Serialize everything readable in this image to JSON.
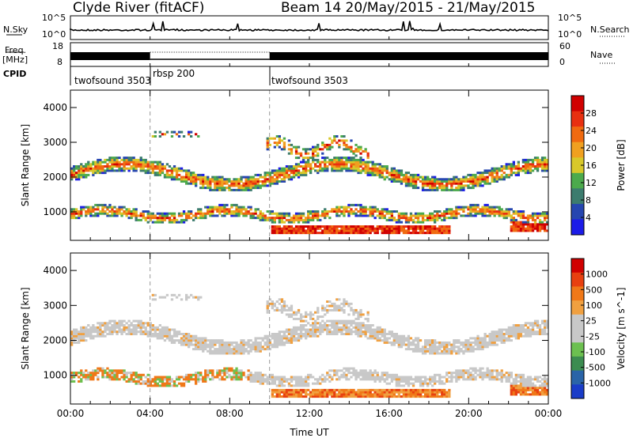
{
  "header": {
    "title": "Clyde River (fitACF)",
    "beam_date": "Beam 14 20/May/2015 - 21/May/2015"
  },
  "side_labels": {
    "nsky": "N.Sky",
    "nsearch": "N.Search",
    "freq": "Freq.",
    "mhz": "[MHz]",
    "nave": "Nave",
    "cpid": "CPID"
  },
  "top_axes": {
    "nsky_ticks": [
      "10^5",
      "10^0"
    ],
    "nsearch_ticks": [
      "10^5",
      "10^0"
    ],
    "freq_ticks": [
      "18",
      "8"
    ],
    "nave_ticks": [
      "60",
      "0"
    ]
  },
  "cpid_segments": [
    {
      "label": "twofsound 3503",
      "start_hour": 0
    },
    {
      "label": "rbsp 200",
      "start_hour": 4
    },
    {
      "label": "twofsound 3503",
      "start_hour": 10
    }
  ],
  "chart_data": [
    {
      "type": "heatmap",
      "title": "",
      "xlabel": "",
      "ylabel": "Slant Range [km]",
      "colorbar_label": "Power [dB]",
      "colorbar_ticks": [
        4,
        8,
        12,
        16,
        20,
        24,
        28
      ],
      "colorbar_colors": [
        "#1c1ce8",
        "#2646b0",
        "#3c7c6e",
        "#4caa4c",
        "#d8c82a",
        "#f0a020",
        "#f06a10",
        "#e83010",
        "#d00000"
      ],
      "x_ticks": [
        "00:00",
        "04:00",
        "08:00",
        "12:00",
        "16:00",
        "20:00",
        "00:00"
      ],
      "y_ticks": [
        1000,
        2000,
        3000,
        4000
      ],
      "ylim": [
        180,
        4500
      ],
      "xlim_hours": [
        0,
        24
      ]
    },
    {
      "type": "heatmap",
      "title": "",
      "xlabel": "Time UT",
      "ylabel": "Slant Range [km]",
      "colorbar_label": "Velocity [m s^-1]",
      "colorbar_ticks": [
        1000,
        500,
        100,
        25,
        -25,
        -100,
        -500,
        -1000
      ],
      "colorbar_colors": [
        "#1a3cc8",
        "#2a64a8",
        "#3c8c50",
        "#6cc050",
        "#c8c8c8",
        "#c8c8c8",
        "#f0a040",
        "#f07818",
        "#e84010",
        "#d00000"
      ],
      "x_ticks": [
        "00:00",
        "04:00",
        "08:00",
        "12:00",
        "16:00",
        "20:00",
        "00:00"
      ],
      "y_ticks": [
        1000,
        2000,
        3000,
        4000
      ],
      "ylim": [
        180,
        4500
      ],
      "xlim_hours": [
        0,
        24
      ]
    }
  ]
}
